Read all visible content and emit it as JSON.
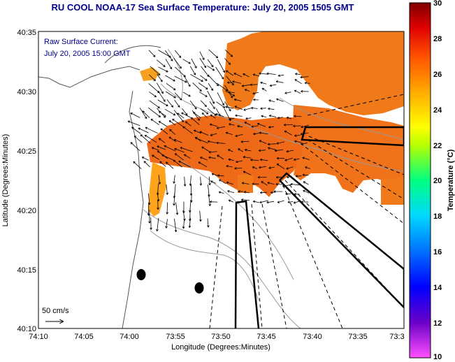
{
  "title": "RU COOL  NOAA-17  Sea Surface Temperature:  July 20, 2005 1505 GMT",
  "annotation": {
    "line1": "Raw Surface Current:",
    "line2": "July 20, 2005 15:00 GMT"
  },
  "axes": {
    "xlabel": "Longitude (Degrees:Minutes)",
    "ylabel": "Latitude (Degrees:Minutes)",
    "xticks": [
      "74:10",
      "74:05",
      "74:00",
      "73:55",
      "73:50",
      "73:45",
      "73:40",
      "73:35",
      "73:3"
    ],
    "yticks": [
      "40:35",
      "40:30",
      "40:25",
      "40:20",
      "40:15",
      "40:10"
    ]
  },
  "scale_label": "50 cm/s",
  "colorbar": {
    "label": "Temperature (°C)",
    "ticks": [
      "30",
      "28",
      "26",
      "24",
      "22",
      "20",
      "18",
      "16",
      "14",
      "12",
      "10"
    ],
    "min": 10,
    "max": 30
  },
  "colors": {
    "title": "#00008b",
    "sst_main": "#f07a1a",
    "sst_warm": "#ee5a14",
    "sst_cool": "#ffa31c"
  }
}
